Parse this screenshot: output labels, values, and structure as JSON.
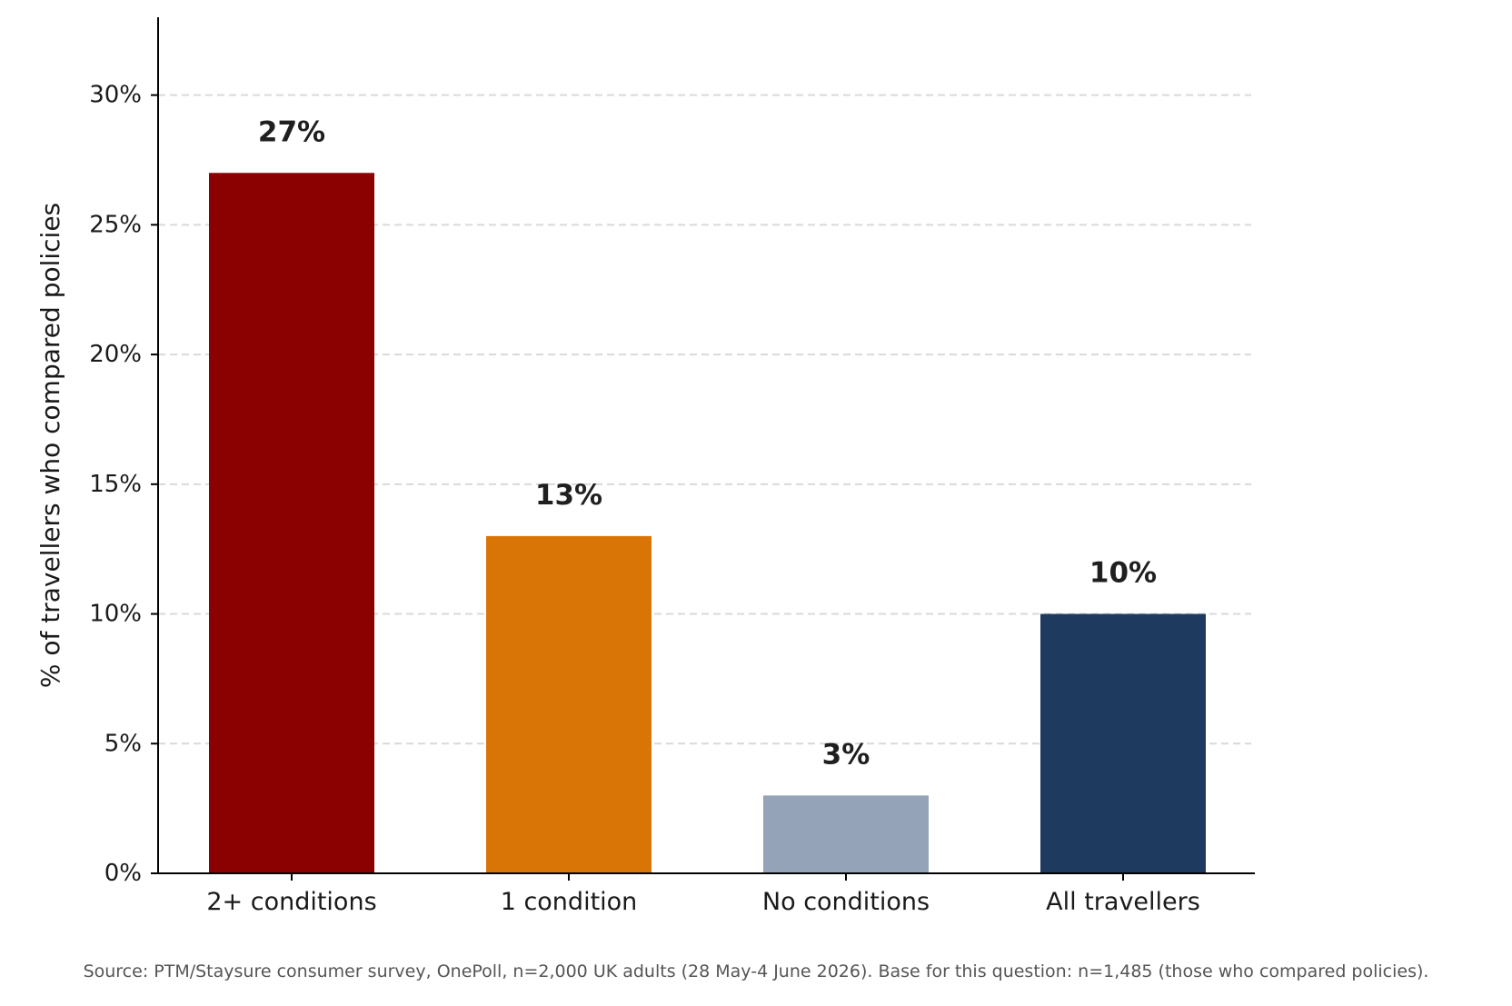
{
  "chart_data": {
    "type": "bar",
    "title": "",
    "xlabel": "",
    "ylabel": "% of travellers who compared policies",
    "categories": [
      "2+ conditions",
      "1 condition",
      "No conditions",
      "All travellers"
    ],
    "values": [
      27,
      13,
      3,
      10
    ],
    "value_labels": [
      "27%",
      "13%",
      "3%",
      "10%"
    ],
    "bar_colors": [
      "#8b0000",
      "#d97506",
      "#94a3b8",
      "#1e3a5f"
    ],
    "ylim": [
      0,
      33
    ],
    "yticks": [
      0,
      5,
      10,
      15,
      20,
      25,
      30
    ],
    "ytick_labels": [
      "0%",
      "5%",
      "10%",
      "15%",
      "20%",
      "25%",
      "30%"
    ],
    "grid": "horizontal dashed",
    "legend": "none"
  },
  "footnote": "Source: PTM/Staysure consumer survey, OnePoll, n=2,000 UK adults (28 May-4 June 2026). Base for this question: n=1,485 (those who compared policies)."
}
